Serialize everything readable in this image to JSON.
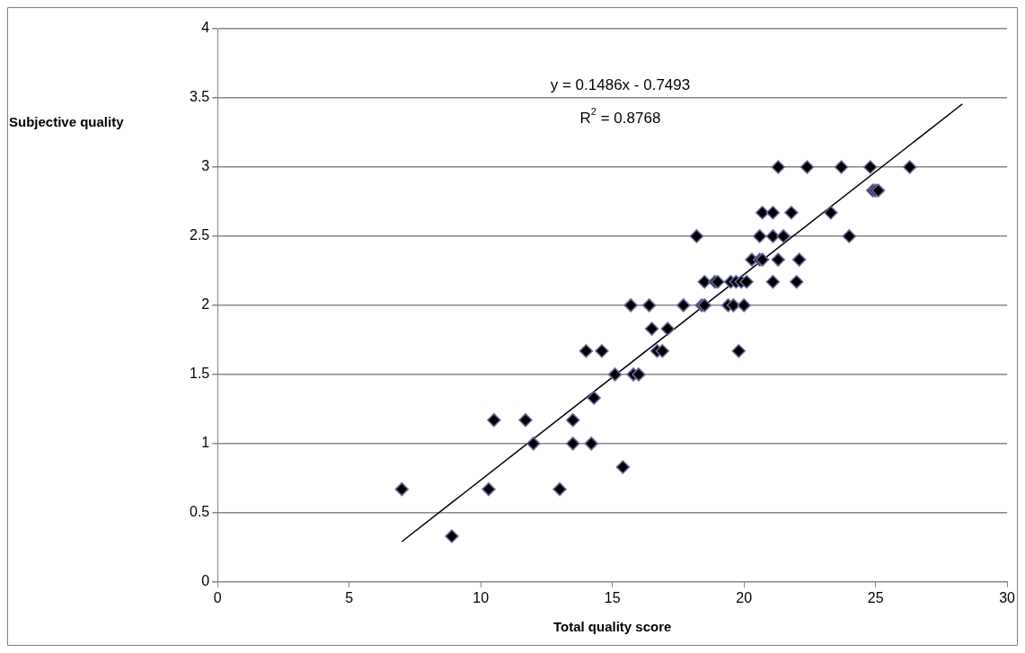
{
  "chart_data": {
    "type": "scatter",
    "xlabel": "Total quality score",
    "ylabel": "Subjective quality",
    "xlim": [
      0,
      30
    ],
    "xticks": [
      0,
      5,
      10,
      15,
      20,
      25,
      30
    ],
    "ylim": [
      0,
      4
    ],
    "yticks": [
      0,
      0.5,
      1,
      1.5,
      2,
      2.5,
      3,
      3.5,
      4
    ],
    "grid": "y",
    "legend": false,
    "annotations": [
      "y = 0.1486x - 0.7493",
      "R$^{2}$ = 0.8768"
    ],
    "series": [
      {
        "color": "#000000",
        "marker": "diamond",
        "x": [
          7,
          8.9,
          10.3,
          10.5,
          11.7,
          12,
          13,
          13.5,
          13.5,
          14,
          14.2,
          14.3,
          14.6,
          15.1,
          15.4,
          15.7,
          15.8,
          16,
          16.4,
          16.5,
          16.7,
          16.9,
          17.1,
          17.7,
          18.2,
          18.4,
          18.5,
          18.5,
          18.9,
          19,
          19.4,
          19.5,
          19.6,
          19.7,
          19.8,
          19.9,
          20,
          20.1,
          20.3,
          20.6,
          20.6,
          20.7,
          20.7,
          21.1,
          21.1,
          21.1,
          21.3,
          21.3,
          21.5,
          21.8,
          22,
          22.1,
          22.4,
          23.3,
          23.7,
          24,
          24.8,
          24.9,
          25,
          25.1,
          26.3
        ],
        "values": [
          0.67,
          0.33,
          0.67,
          1.17,
          1.17,
          1,
          0.67,
          1.17,
          1,
          1.67,
          1,
          1.33,
          1.67,
          1.5,
          0.83,
          2,
          1.5,
          1.5,
          2,
          1.83,
          1.67,
          1.67,
          1.83,
          2,
          2.5,
          2,
          2,
          2.17,
          2.17,
          2.17,
          2,
          2.17,
          2,
          2.17,
          1.67,
          2.17,
          2,
          2.17,
          2.33,
          2.33,
          2.5,
          2.67,
          2.33,
          2.67,
          2.5,
          2.17,
          3,
          2.33,
          2.5,
          2.67,
          2.17,
          2.33,
          3,
          2.67,
          3,
          2.5,
          3,
          2.83,
          2.83,
          2.83,
          3
        ]
      },
      {
        "type": "line",
        "marker": "none",
        "color": "#000000",
        "x": [
          7,
          28.3
        ],
        "values": [
          0.291,
          3.456
        ]
      }
    ]
  }
}
